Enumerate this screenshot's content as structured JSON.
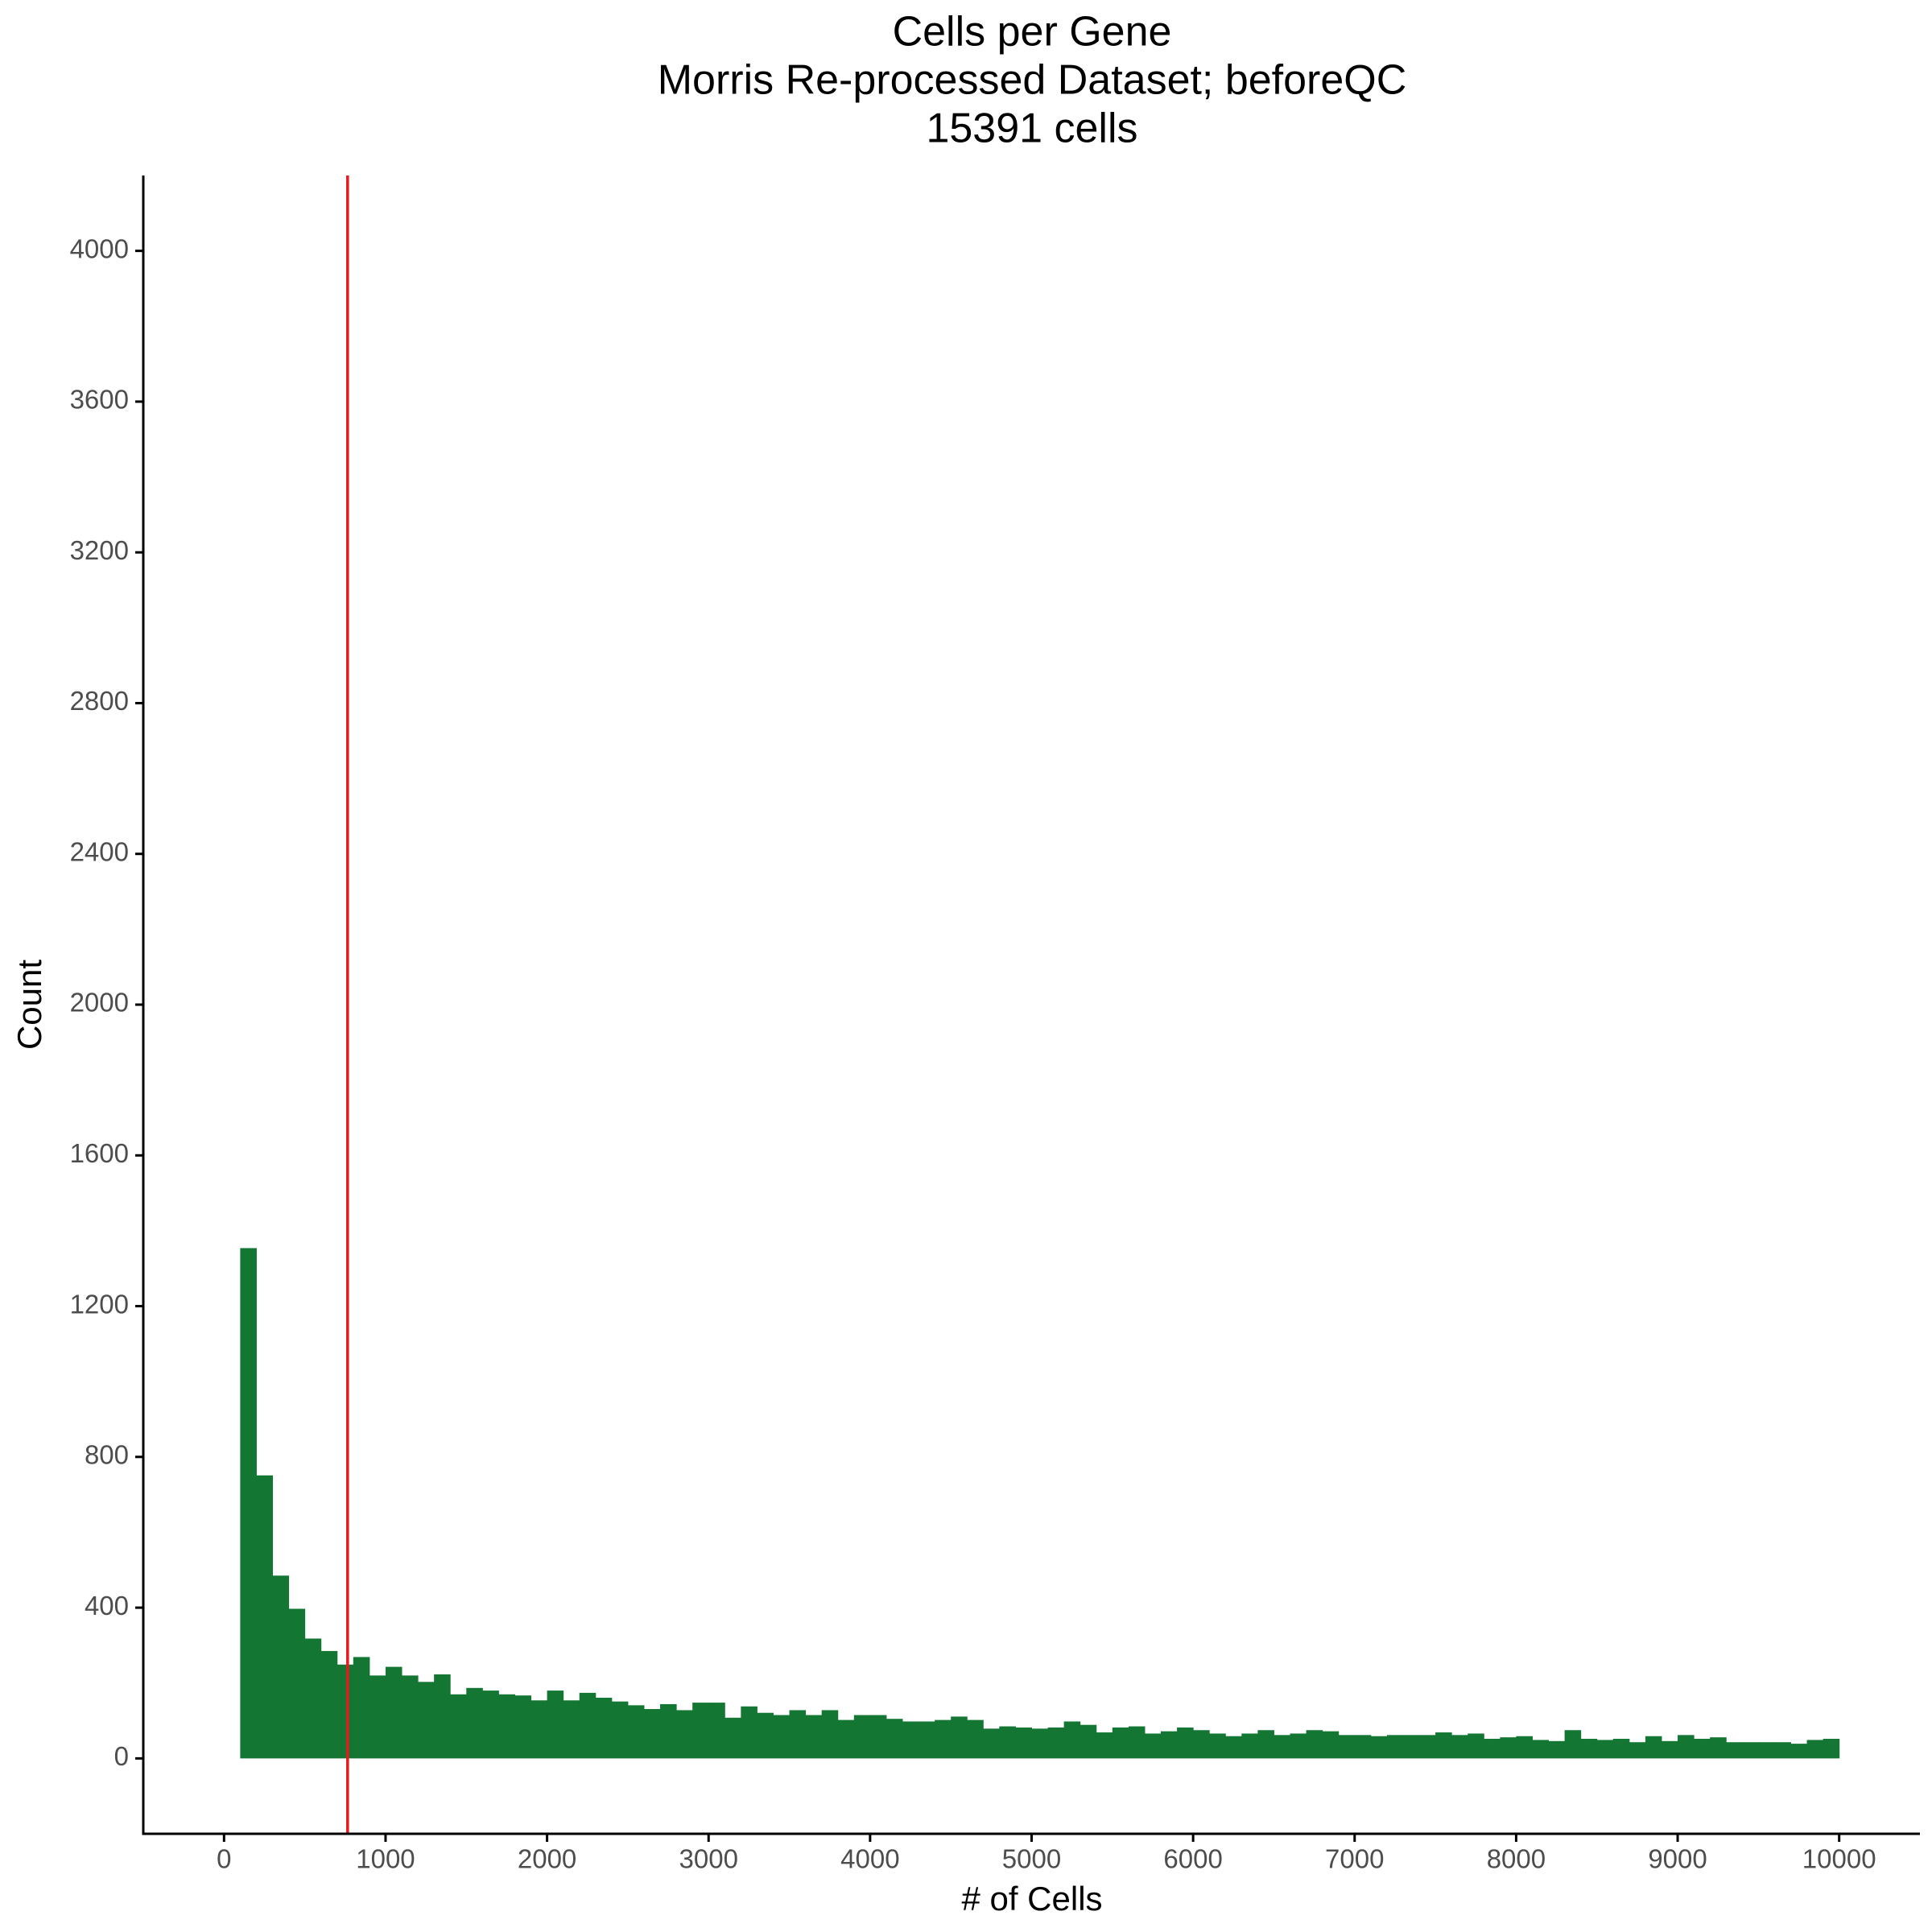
{
  "chart_data": {
    "type": "histogram",
    "title": "Cells per Gene",
    "subtitle": [
      "Morris Re-processed Dataset; beforeQC",
      "15391 cells"
    ],
    "xlabel": "# of Cells",
    "ylabel": "Count",
    "color": "#137633",
    "vline": 765,
    "vline_color": "#e41a1c",
    "bins": [
      100,
      200,
      300,
      400,
      500,
      600,
      700,
      800,
      900,
      1000,
      1100,
      1200,
      1300,
      1400,
      1500,
      1600,
      1700,
      1800,
      1900,
      2000,
      2100,
      2200,
      2300,
      2400,
      2500,
      2600,
      2700,
      2800,
      2900,
      3000,
      3100,
      3200,
      3300,
      3400,
      3500,
      3600,
      3700,
      3800,
      3900,
      4000,
      4100,
      4200,
      4300,
      4400,
      4500,
      4600,
      4700,
      4800,
      4900,
      5000,
      5100,
      5200,
      5300,
      5400,
      5500,
      5600,
      5700,
      5800,
      5900,
      6000,
      6100,
      6200,
      6300,
      6400,
      6500,
      6600,
      6700,
      6800,
      6900,
      7000,
      7100,
      7200,
      7300,
      7400,
      7500,
      7600,
      7700,
      7800,
      7900,
      8000,
      8100,
      8200,
      8300,
      8400,
      8500,
      8600,
      8700,
      8800,
      8900,
      9000,
      9100,
      9200,
      9300,
      9400,
      9500,
      9600,
      9700,
      9800,
      9900,
      10000
    ],
    "values": [
      1354,
      751,
      485,
      397,
      318,
      285,
      249,
      269,
      220,
      243,
      220,
      203,
      223,
      170,
      187,
      180,
      170,
      167,
      154,
      180,
      154,
      174,
      161,
      151,
      141,
      131,
      144,
      128,
      148,
      148,
      108,
      138,
      121,
      115,
      128,
      115,
      128,
      102,
      115,
      115,
      105,
      98,
      98,
      102,
      111,
      102,
      79,
      85,
      82,
      79,
      82,
      98,
      89,
      69,
      82,
      85,
      66,
      72,
      82,
      75,
      66,
      59,
      66,
      75,
      62,
      66,
      75,
      72,
      62,
      62,
      59,
      62,
      62,
      62,
      69,
      62,
      66,
      52,
      56,
      59,
      49,
      46,
      75,
      52,
      49,
      52,
      43,
      59,
      46,
      62,
      52,
      56,
      43,
      43,
      43,
      43,
      39,
      49,
      52
    ],
    "xlim": [
      -500,
      10500
    ],
    "ylim": [
      -200,
      4200
    ],
    "xticks": [
      0,
      1000,
      2000,
      3000,
      4000,
      5000,
      6000,
      7000,
      8000,
      9000,
      10000
    ],
    "yticks": [
      0,
      400,
      800,
      1200,
      1600,
      2000,
      2400,
      2800,
      3200,
      3600,
      4000
    ],
    "grid": false
  }
}
